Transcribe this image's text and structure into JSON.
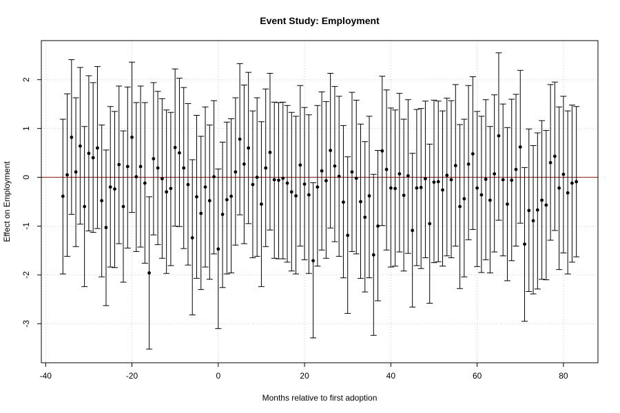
{
  "chart_data": {
    "type": "scatter",
    "title": "Event Study: Employment",
    "xlabel": "Months relative to first adoption",
    "ylabel": "Effect on Employment",
    "xlim": [
      -41,
      88
    ],
    "ylim": [
      -3.8,
      2.8
    ],
    "xticks": [
      -40,
      -20,
      0,
      20,
      40,
      60,
      80
    ],
    "yticks": [
      -3,
      -2,
      -1,
      0,
      1,
      2
    ],
    "xtick_labels": [
      "-40",
      "-20",
      "0",
      "20",
      "40",
      "60",
      "80"
    ],
    "ytick_labels": [
      "-3",
      "-2",
      "-1",
      "0",
      "1",
      "2"
    ],
    "grid": true,
    "reference_line": {
      "y": 0,
      "color": "#8b1a1a"
    },
    "point_color": "#000000",
    "x": [
      -36,
      -35,
      -34,
      -33,
      -32,
      -31,
      -30,
      -29,
      -28,
      -27,
      -26,
      -25,
      -24,
      -23,
      -22,
      -21,
      -20,
      -19,
      -18,
      -17,
      -16,
      -15,
      -14,
      -13,
      -12,
      -11,
      -10,
      -9,
      -8,
      -7,
      -6,
      -5,
      -4,
      -3,
      -2,
      -1,
      0,
      1,
      2,
      3,
      4,
      5,
      6,
      7,
      8,
      9,
      10,
      11,
      12,
      13,
      14,
      15,
      16,
      17,
      18,
      19,
      20,
      21,
      22,
      23,
      24,
      25,
      26,
      27,
      28,
      29,
      30,
      31,
      32,
      33,
      34,
      35,
      36,
      37,
      38,
      39,
      40,
      41,
      42,
      43,
      44,
      45,
      46,
      47,
      48,
      49,
      50,
      51,
      52,
      53,
      54,
      55,
      56,
      57,
      58,
      59,
      60,
      61,
      62,
      63,
      64,
      65,
      66,
      67,
      68,
      69,
      70,
      71,
      72,
      73,
      74,
      75,
      76,
      77,
      78,
      79,
      80,
      81,
      82,
      83
    ],
    "y": [
      -0.39,
      0.05,
      0.82,
      0.11,
      0.64,
      -0.6,
      0.49,
      0.4,
      0.6,
      -0.48,
      -1.03,
      -0.2,
      -0.24,
      0.26,
      -0.6,
      0.22,
      0.82,
      0.01,
      0.22,
      -0.12,
      -1.96,
      0.38,
      0.19,
      -0.03,
      -0.3,
      -0.23,
      0.61,
      0.5,
      0.19,
      -0.15,
      -1.24,
      -0.4,
      -0.74,
      -0.2,
      -0.48,
      0.01,
      -1.47,
      -0.76,
      -0.46,
      -0.39,
      0.11,
      0.78,
      0.27,
      0.6,
      -0.15,
      0.0,
      -0.55,
      0.19,
      0.51,
      -0.05,
      -0.06,
      -0.02,
      -0.12,
      -0.3,
      -0.38,
      0.25,
      -0.14,
      -0.36,
      -1.71,
      -0.2,
      0.13,
      -0.07,
      0.55,
      0.23,
      0.02,
      -0.51,
      -1.19,
      0.11,
      -0.02,
      -0.5,
      -0.82,
      -0.38,
      -1.59,
      -1.0,
      0.54,
      0.16,
      -0.22,
      -0.23,
      0.07,
      -0.37,
      0.03,
      -1.09,
      -0.22,
      -0.21,
      -0.03,
      -0.95,
      -0.1,
      -0.09,
      -0.26,
      0.04,
      -0.05,
      0.24,
      -0.6,
      -0.44,
      0.27,
      0.48,
      -0.22,
      -0.36,
      -0.04,
      -0.47,
      0.07,
      0.85,
      -0.05,
      -0.55,
      -0.06,
      0.16,
      0.62,
      -1.37,
      -0.68,
      -0.89,
      -0.67,
      -0.47,
      -0.57,
      0.3,
      0.43,
      -0.22,
      0.06,
      -0.32,
      -0.12,
      -0.09
    ],
    "upper": [
      1.19,
      1.71,
      2.41,
      1.63,
      2.25,
      1.04,
      2.08,
      1.94,
      2.27,
      1.07,
      0.56,
      1.45,
      1.35,
      1.87,
      0.95,
      1.85,
      2.36,
      1.53,
      1.87,
      1.53,
      -0.4,
      1.94,
      1.76,
      1.61,
      1.38,
      1.33,
      2.22,
      2.03,
      1.84,
      1.51,
      0.36,
      1.27,
      0.84,
      1.44,
      1.07,
      1.57,
      0.17,
      0.72,
      1.13,
      1.2,
      1.63,
      2.33,
      1.89,
      2.15,
      1.36,
      1.63,
      1.14,
      1.81,
      2.13,
      1.54,
      1.53,
      1.54,
      1.47,
      1.33,
      1.25,
      1.88,
      1.43,
      1.28,
      -0.11,
      1.47,
      1.75,
      1.55,
      2.13,
      1.86,
      1.66,
      1.06,
      0.42,
      1.74,
      1.58,
      1.09,
      0.73,
      1.25,
      0.06,
      0.55,
      2.07,
      1.79,
      1.42,
      1.38,
      1.72,
      1.19,
      1.59,
      0.49,
      1.39,
      1.41,
      1.56,
      0.68,
      1.58,
      1.56,
      1.36,
      1.62,
      1.57,
      1.9,
      1.08,
      1.19,
      1.88,
      2.06,
      1.35,
      1.25,
      1.59,
      1.04,
      1.69,
      2.55,
      1.5,
      1.02,
      1.6,
      1.7,
      2.19,
      0.2,
      0.99,
      0.65,
      0.91,
      1.16,
      0.96,
      1.9,
      1.95,
      1.44,
      1.66,
      1.36,
      1.48,
      1.45
    ],
    "lower": [
      -1.98,
      -1.62,
      -0.76,
      -1.42,
      -0.96,
      -2.24,
      -1.1,
      -1.13,
      -1.05,
      -2.04,
      -2.63,
      -1.84,
      -1.85,
      -1.36,
      -2.15,
      -1.45,
      -0.72,
      -1.52,
      -1.43,
      -1.76,
      -3.52,
      -1.18,
      -1.38,
      -1.66,
      -1.97,
      -1.81,
      -1.0,
      -1.01,
      -1.46,
      -1.8,
      -2.82,
      -2.07,
      -2.3,
      -1.84,
      -2.09,
      -1.57,
      -3.1,
      -2.26,
      -1.98,
      -1.96,
      -1.39,
      -0.77,
      -1.36,
      -0.95,
      -1.65,
      -1.62,
      -2.24,
      -1.42,
      -1.08,
      -1.66,
      -1.67,
      -1.67,
      -1.74,
      -1.92,
      -1.98,
      -1.41,
      -1.69,
      -1.97,
      -3.29,
      -1.82,
      -1.49,
      -1.66,
      -1.04,
      -1.32,
      -1.62,
      -2.06,
      -2.79,
      -1.52,
      -1.57,
      -2.07,
      -2.35,
      -2.06,
      -3.24,
      -2.53,
      -0.99,
      -1.49,
      -1.84,
      -1.82,
      -1.53,
      -1.92,
      -1.56,
      -2.66,
      -1.81,
      -1.87,
      -1.65,
      -2.58,
      -1.75,
      -1.73,
      -1.82,
      -1.61,
      -1.65,
      -1.41,
      -2.28,
      -2.04,
      -1.28,
      -1.07,
      -1.83,
      -1.95,
      -1.69,
      -1.96,
      -1.53,
      -0.88,
      -1.61,
      -2.12,
      -1.71,
      -1.41,
      -0.94,
      -2.95,
      -2.34,
      -2.39,
      -2.29,
      -2.09,
      -2.1,
      -1.29,
      -1.09,
      -1.89,
      -1.55,
      -1.98,
      -1.74,
      -1.63
    ]
  }
}
